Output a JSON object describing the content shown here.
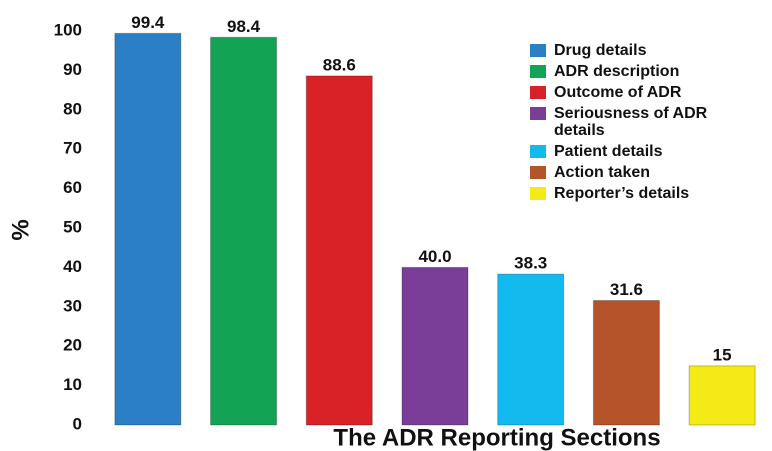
{
  "chart_data": {
    "type": "bar",
    "xlabel": "The ADR Reporting Sections",
    "ylabel": "%",
    "categories": [
      "Drug details",
      "ADR description",
      "Outcome of ADR",
      "Seriousness of ADR details",
      "Patient details",
      "Action taken",
      "Reporter’s details"
    ],
    "values": [
      99.4,
      98.4,
      88.6,
      40.0,
      38.3,
      31.6,
      15
    ],
    "value_labels": [
      "99.4",
      "98.4",
      "88.6",
      "40.0",
      "38.3",
      "31.6",
      "15"
    ],
    "colors": [
      "#2b7fc4",
      "#12a454",
      "#d92128",
      "#7a3e99",
      "#14b9ee",
      "#b5532a",
      "#f4ea17"
    ],
    "ylim": [
      0,
      100
    ],
    "yticks": [
      0,
      10,
      20,
      30,
      40,
      50,
      60,
      70,
      80,
      90,
      100
    ],
    "legend": "upper right"
  }
}
